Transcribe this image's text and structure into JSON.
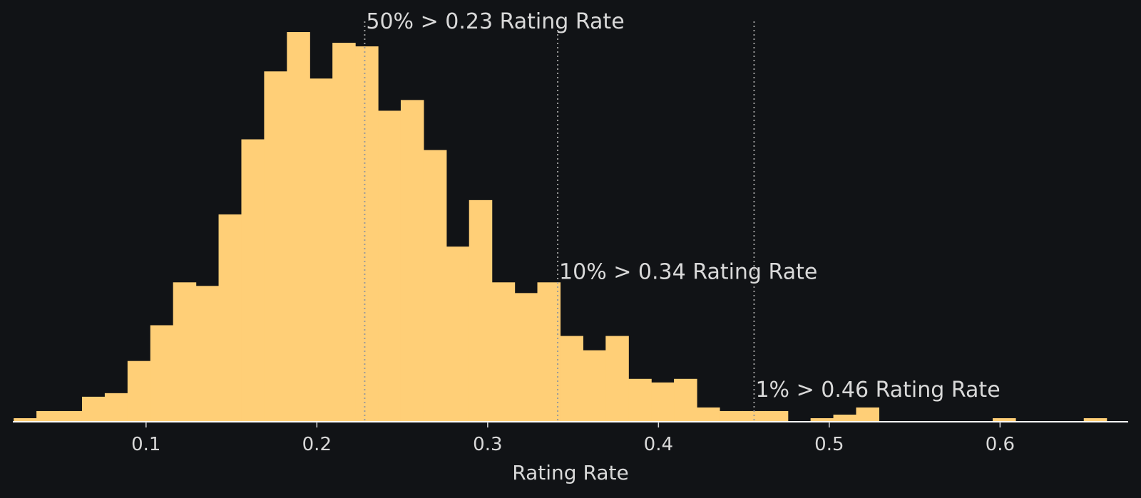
{
  "colors": {
    "background": "#111316",
    "bar_fill": "#ffcf77",
    "text": "#d9d9d9",
    "threshold_line": "#9a9a9a",
    "baseline": "#ffffff"
  },
  "chart_data": {
    "type": "bar",
    "subtype": "histogram",
    "xlabel": "Rating Rate",
    "ylabel": "",
    "xlim": [
      0.022,
      0.675
    ],
    "xticks": [
      0.1,
      0.2,
      0.3,
      0.4,
      0.5,
      0.6
    ],
    "xtick_labels": [
      "0.1",
      "0.2",
      "0.3",
      "0.4",
      "0.5",
      "0.6"
    ],
    "grid": false,
    "y_axis_visible": false,
    "bin_width": 0.01333,
    "bin_start": 0.0225,
    "counts": [
      1,
      3,
      3,
      7,
      8,
      17,
      27,
      39,
      38,
      58,
      79,
      98,
      109,
      96,
      106,
      105,
      87,
      90,
      76,
      49,
      62,
      39,
      36,
      39,
      24,
      20,
      24,
      12,
      11,
      12,
      4,
      3,
      3,
      3,
      0,
      1,
      2,
      4,
      0,
      0,
      0,
      0,
      0,
      1,
      0,
      0,
      0,
      1,
      0,
      0,
      0,
      1
    ],
    "ylim": [
      0,
      110
    ],
    "thresholds": [
      {
        "x": 0.228,
        "label": "50% > 0.23 Rating Rate",
        "label_y": 110
      },
      {
        "x": 0.341,
        "label": "10% > 0.34 Rating Rate",
        "label_y": 40
      },
      {
        "x": 0.456,
        "label": "1% > 0.46 Rating Rate",
        "label_y": 7
      }
    ]
  }
}
